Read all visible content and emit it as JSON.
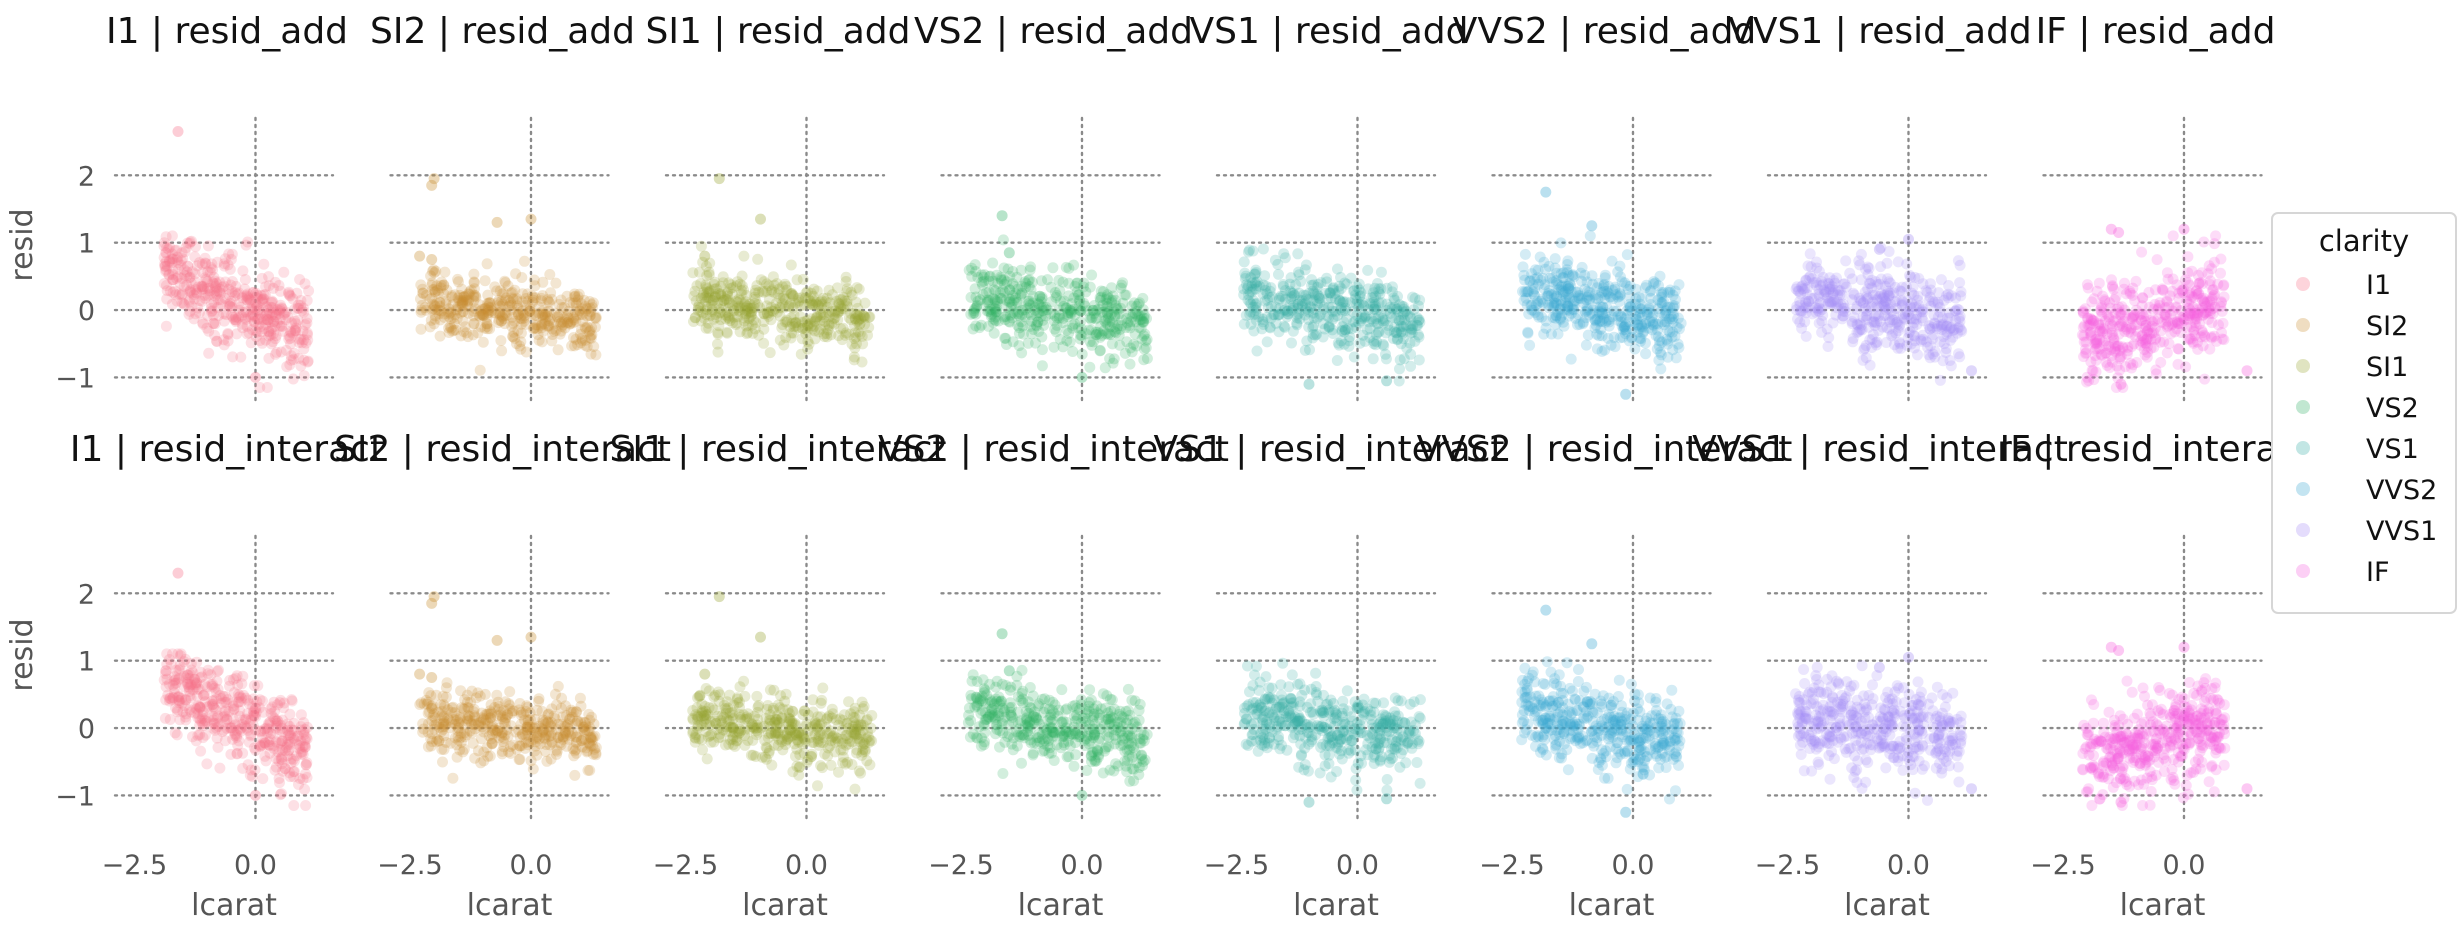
{
  "figure": {
    "x_axis_label": "lcarat",
    "y_axis_label": "resid",
    "legend": {
      "title": "clarity",
      "placement": "right-center"
    }
  },
  "chart_data": {
    "type": "scatter",
    "layout": "facet grid: 2 rows (residual type) x 8 columns (clarity)",
    "grid": "dotted lines at x=0 and y=-1,0,1,2",
    "xlim": [
      -2.9,
      1.6
    ],
    "ylim": [
      -1.35,
      2.85
    ],
    "x_ticks": [
      -2.5,
      0.0
    ],
    "x_tick_labels": [
      "−2.5",
      "0.0"
    ],
    "y_ticks": [
      -1,
      0,
      1,
      2
    ],
    "y_tick_labels": [
      "−1",
      "0",
      "1",
      "2"
    ],
    "rows": [
      {
        "residual": "resid_add",
        "title_suffix": "resid_add"
      },
      {
        "residual": "resid_interact",
        "title_suffix": "resid_interact"
      }
    ],
    "clarity_levels": [
      {
        "name": "I1",
        "color": "#f77189",
        "x_range": [
          -1.9,
          1.1
        ],
        "resid_mean": 0.0,
        "slope": -0.35,
        "spread": 0.32,
        "points": [
          [
            -1.6,
            2.65
          ],
          [
            -1.4,
            0.65
          ],
          [
            -1.85,
            0.85
          ],
          [
            -1.7,
            0.45
          ],
          [
            0.0,
            -1.0
          ]
        ]
      },
      {
        "name": "SI2",
        "color": "#c98e31",
        "x_range": [
          -2.3,
          1.35
        ],
        "resid_mean": -0.05,
        "slope": -0.08,
        "spread": 0.24,
        "points": [
          [
            -2.0,
            1.95
          ],
          [
            -2.05,
            1.85
          ],
          [
            -0.7,
            1.3
          ],
          [
            0.0,
            1.35
          ],
          [
            -2.3,
            0.8
          ],
          [
            -2.05,
            0.75
          ]
        ]
      },
      {
        "name": "SI1",
        "color": "#97a431",
        "x_range": [
          -2.35,
          1.35
        ],
        "resid_mean": -0.05,
        "slope": -0.08,
        "spread": 0.24,
        "points": [
          [
            -1.8,
            1.95
          ],
          [
            -0.95,
            1.35
          ],
          [
            -2.1,
            0.8
          ]
        ]
      },
      {
        "name": "VS2",
        "color": "#32b166",
        "x_range": [
          -2.35,
          1.35
        ],
        "resid_mean": -0.05,
        "slope": -0.12,
        "spread": 0.28,
        "points": [
          [
            -1.65,
            1.4
          ],
          [
            -1.5,
            0.85
          ],
          [
            0.0,
            -1.0
          ]
        ]
      },
      {
        "name": "VS1",
        "color": "#36ada4",
        "x_range": [
          -2.35,
          1.3
        ],
        "resid_mean": -0.05,
        "slope": -0.12,
        "spread": 0.28,
        "points": [
          [
            -1.0,
            -1.1
          ],
          [
            0.6,
            -1.05
          ]
        ]
      },
      {
        "name": "VVS2",
        "color": "#39a7d0",
        "x_range": [
          -2.3,
          1.0
        ],
        "resid_mean": -0.05,
        "slope": -0.15,
        "spread": 0.3,
        "points": [
          [
            -1.8,
            1.75
          ],
          [
            -0.85,
            1.25
          ],
          [
            -0.15,
            -1.25
          ]
        ]
      },
      {
        "name": "VVS1",
        "color": "#a48cf4",
        "x_range": [
          -2.35,
          1.1
        ],
        "resid_mean": -0.05,
        "slope": -0.1,
        "spread": 0.32,
        "points": [
          [
            -0.6,
            0.9
          ],
          [
            0.0,
            1.05
          ],
          [
            1.3,
            -0.9
          ]
        ]
      },
      {
        "name": "IF",
        "color": "#f561dd",
        "x_range": [
          -2.1,
          0.85
        ],
        "resid_mean": -0.05,
        "slope": 0.2,
        "spread": 0.35,
        "points": [
          [
            -1.5,
            1.2
          ],
          [
            -1.35,
            1.15
          ],
          [
            0.0,
            1.2
          ],
          [
            1.3,
            -0.9
          ],
          [
            -1.3,
            -1.1
          ]
        ]
      }
    ]
  }
}
